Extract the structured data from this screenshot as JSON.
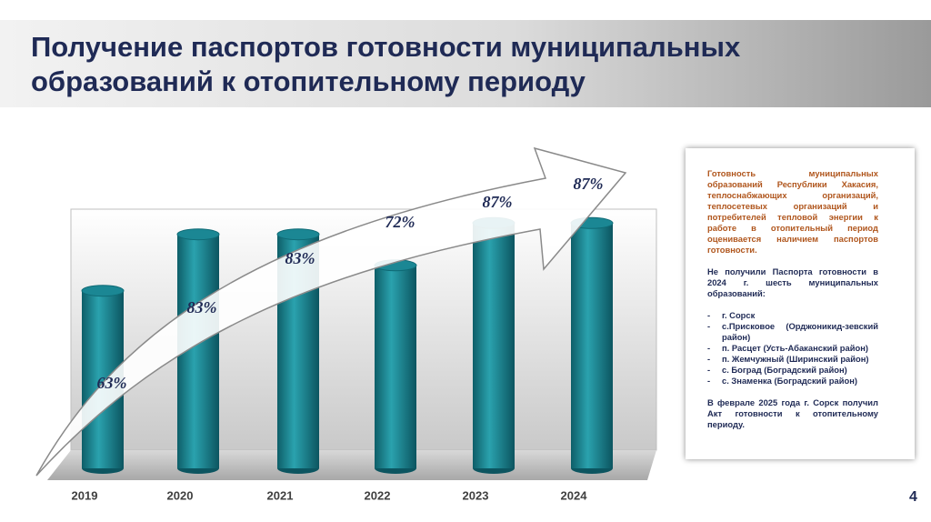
{
  "header": {
    "title": [
      "Получение паспортов готовности муниципальных",
      "образований к отопительному периоду"
    ]
  },
  "chart_data": {
    "type": "bar",
    "categories": [
      "2019",
      "2020",
      "2021",
      "2022",
      "2023",
      "2024"
    ],
    "values": [
      63,
      83,
      83,
      72,
      87,
      87
    ],
    "value_labels": [
      "63%",
      "83%",
      "83%",
      "72%",
      "87%",
      "87%"
    ],
    "color": "#1b8794",
    "ylim": [
      0,
      100
    ]
  },
  "info_box": {
    "paragraph1": "Готовность муниципальных образований Республики Хакасия, теплоснабжающих организаций, теплосетевых организаций и потребителей тепловой энергии к работе в отопительный период оценивается наличием паспортов готовности.",
    "paragraph2": "Не получили Паспорта готовности в 2024 г. шесть муниципальных образований:",
    "list": [
      "г. Сорск",
      "с.Присковое (Орджоникид-зевский район)",
      "п. Расцет (Усть-Абаканский район)",
      "п. Жемчужный (Ширинский район)",
      "с. Боград (Боградский район)",
      "с. Знаменка (Боградский район)"
    ],
    "paragraph3": "В феврале 2025 года г. Сорск получил Акт готовности к отопительному периоду."
  },
  "page_number": "4"
}
